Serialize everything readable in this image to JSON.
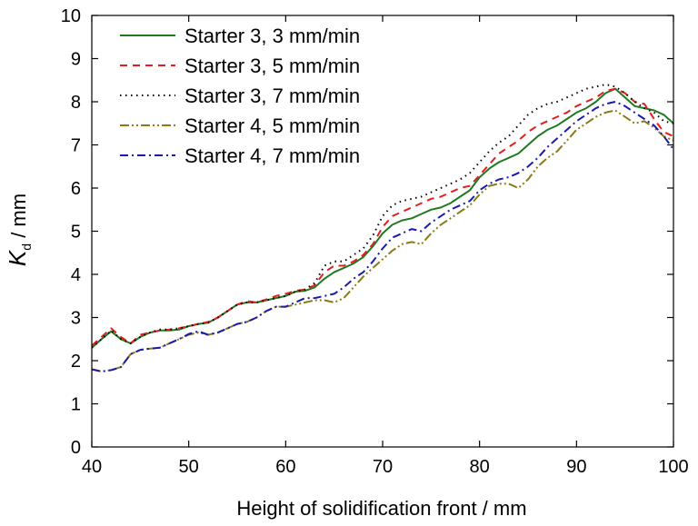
{
  "chart_data": {
    "type": "line",
    "xlabel": "Height of solidification front / mm",
    "ylabel_main": "K",
    "ylabel_sub": "d",
    "ylabel_unit": " / mm",
    "xlim": [
      40,
      100
    ],
    "ylim": [
      0,
      10
    ],
    "x_ticks": [
      40,
      50,
      60,
      70,
      80,
      90,
      100
    ],
    "y_ticks": [
      0,
      1,
      2,
      3,
      4,
      5,
      6,
      7,
      8,
      9,
      10
    ],
    "grid": false,
    "legend_position": "top-left",
    "series": [
      {
        "name": "Starter 3, 3 mm/min",
        "color": "#1f7a1f",
        "dash": "solid",
        "x": [
          40,
          41,
          42,
          43,
          44,
          45,
          46,
          47,
          48,
          49,
          50,
          51,
          52,
          53,
          54,
          55,
          56,
          57,
          58,
          59,
          60,
          61,
          62,
          63,
          64,
          65,
          66,
          67,
          68,
          69,
          70,
          71,
          72,
          73,
          74,
          75,
          76,
          77,
          78,
          79,
          80,
          81,
          82,
          83,
          84,
          85,
          86,
          87,
          88,
          89,
          90,
          91,
          92,
          93,
          94,
          95,
          96,
          97,
          98,
          99,
          100
        ],
        "y": [
          2.3,
          2.5,
          2.68,
          2.5,
          2.4,
          2.55,
          2.65,
          2.7,
          2.7,
          2.72,
          2.8,
          2.85,
          2.88,
          3.0,
          3.15,
          3.3,
          3.35,
          3.35,
          3.4,
          3.45,
          3.5,
          3.6,
          3.62,
          3.7,
          3.9,
          4.05,
          4.15,
          4.25,
          4.4,
          4.65,
          4.95,
          5.15,
          5.25,
          5.3,
          5.4,
          5.5,
          5.55,
          5.65,
          5.8,
          5.95,
          6.25,
          6.45,
          6.6,
          6.7,
          6.8,
          7.0,
          7.2,
          7.35,
          7.45,
          7.6,
          7.75,
          7.85,
          8.0,
          8.2,
          8.3,
          8.1,
          7.9,
          7.85,
          7.8,
          7.7,
          7.5
        ]
      },
      {
        "name": "Starter 3, 5 mm/min",
        "color": "#e02020",
        "dash": "8,6",
        "x": [
          40,
          41,
          42,
          43,
          44,
          45,
          46,
          47,
          48,
          49,
          50,
          51,
          52,
          53,
          54,
          55,
          56,
          57,
          58,
          59,
          60,
          61,
          62,
          63,
          64,
          65,
          66,
          67,
          68,
          69,
          70,
          71,
          72,
          73,
          74,
          75,
          76,
          77,
          78,
          79,
          80,
          81,
          82,
          83,
          84,
          85,
          86,
          87,
          88,
          89,
          90,
          91,
          92,
          93,
          94,
          95,
          96,
          97,
          98,
          99,
          100
        ],
        "y": [
          2.35,
          2.55,
          2.75,
          2.55,
          2.4,
          2.6,
          2.65,
          2.7,
          2.72,
          2.75,
          2.8,
          2.85,
          2.9,
          3.0,
          3.15,
          3.3,
          3.38,
          3.35,
          3.42,
          3.5,
          3.55,
          3.62,
          3.65,
          3.75,
          4.05,
          4.2,
          4.2,
          4.3,
          4.45,
          4.7,
          5.1,
          5.35,
          5.45,
          5.55,
          5.65,
          5.75,
          5.8,
          5.9,
          6.0,
          6.05,
          6.3,
          6.55,
          6.8,
          6.95,
          7.1,
          7.3,
          7.45,
          7.55,
          7.65,
          7.75,
          7.9,
          8.0,
          8.1,
          8.25,
          8.3,
          8.2,
          8.0,
          7.95,
          7.6,
          7.3,
          7.2
        ]
      },
      {
        "name": "Starter 3, 7 mm/min",
        "color": "#000000",
        "dash": "1.5,4.5",
        "x": [
          40,
          41,
          42,
          43,
          44,
          45,
          46,
          47,
          48,
          49,
          50,
          51,
          52,
          53,
          54,
          55,
          56,
          57,
          58,
          59,
          60,
          61,
          62,
          63,
          64,
          65,
          66,
          67,
          68,
          69,
          70,
          71,
          72,
          73,
          74,
          75,
          76,
          77,
          78,
          79,
          80,
          81,
          82,
          83,
          84,
          85,
          86,
          87,
          88,
          89,
          90,
          91,
          92,
          93,
          94,
          95,
          96,
          97,
          98,
          99,
          100
        ],
        "y": [
          2.3,
          2.5,
          2.7,
          2.5,
          2.4,
          2.55,
          2.65,
          2.72,
          2.72,
          2.75,
          2.8,
          2.85,
          2.88,
          3.0,
          3.15,
          3.3,
          3.35,
          3.35,
          3.4,
          3.45,
          3.5,
          3.6,
          3.65,
          3.8,
          4.2,
          4.3,
          4.3,
          4.45,
          4.6,
          4.9,
          5.35,
          5.6,
          5.7,
          5.75,
          5.8,
          5.9,
          6.0,
          6.1,
          6.2,
          6.35,
          6.6,
          6.85,
          7.05,
          7.2,
          7.45,
          7.7,
          7.85,
          7.95,
          8.0,
          8.1,
          8.2,
          8.3,
          8.35,
          8.4,
          8.35,
          8.2,
          8.0,
          7.85,
          7.75,
          7.55,
          7.5
        ]
      },
      {
        "name": "Starter 4, 5 mm/min",
        "color": "#8b7a1a",
        "dash": "10,3,2,3,2,3",
        "x": [
          40,
          41,
          42,
          43,
          44,
          45,
          46,
          47,
          48,
          49,
          50,
          51,
          52,
          53,
          54,
          55,
          56,
          57,
          58,
          59,
          60,
          61,
          62,
          63,
          64,
          65,
          66,
          67,
          68,
          69,
          70,
          71,
          72,
          73,
          74,
          75,
          76,
          77,
          78,
          79,
          80,
          81,
          82,
          83,
          84,
          85,
          86,
          87,
          88,
          89,
          90,
          91,
          92,
          93,
          94,
          95,
          96,
          97,
          98,
          99,
          100
        ],
        "y": [
          1.8,
          1.75,
          1.78,
          1.85,
          2.15,
          2.25,
          2.28,
          2.3,
          2.4,
          2.5,
          2.6,
          2.65,
          2.6,
          2.65,
          2.75,
          2.85,
          2.9,
          3.0,
          3.15,
          3.25,
          3.25,
          3.3,
          3.35,
          3.4,
          3.4,
          3.35,
          3.45,
          3.7,
          3.95,
          4.15,
          4.35,
          4.55,
          4.7,
          4.75,
          4.7,
          4.95,
          5.15,
          5.3,
          5.45,
          5.6,
          5.85,
          6.05,
          6.1,
          6.1,
          6.0,
          6.2,
          6.5,
          6.7,
          6.85,
          7.1,
          7.35,
          7.5,
          7.65,
          7.75,
          7.8,
          7.65,
          7.5,
          7.55,
          7.4,
          7.2,
          7.1
        ]
      },
      {
        "name": "Starter 4, 7 mm/min",
        "color": "#1a1aa8",
        "dash": "9,4,2,4",
        "x": [
          40,
          41,
          42,
          43,
          44,
          45,
          46,
          47,
          48,
          49,
          50,
          51,
          52,
          53,
          54,
          55,
          56,
          57,
          58,
          59,
          60,
          61,
          62,
          63,
          64,
          65,
          66,
          67,
          68,
          69,
          70,
          71,
          72,
          73,
          74,
          75,
          76,
          77,
          78,
          79,
          80,
          81,
          82,
          83,
          84,
          85,
          86,
          87,
          88,
          89,
          90,
          91,
          92,
          93,
          94,
          95,
          96,
          97,
          98,
          99,
          100
        ],
        "y": [
          1.8,
          1.75,
          1.78,
          1.85,
          2.15,
          2.25,
          2.28,
          2.3,
          2.4,
          2.5,
          2.62,
          2.68,
          2.6,
          2.65,
          2.75,
          2.85,
          2.9,
          3.0,
          3.15,
          3.25,
          3.25,
          3.35,
          3.45,
          3.45,
          3.5,
          3.55,
          3.7,
          3.9,
          4.05,
          4.3,
          4.6,
          4.85,
          4.95,
          5.05,
          5.0,
          5.2,
          5.35,
          5.5,
          5.6,
          5.7,
          5.95,
          6.1,
          6.2,
          6.25,
          6.35,
          6.5,
          6.7,
          6.95,
          7.15,
          7.35,
          7.55,
          7.7,
          7.85,
          7.95,
          8.0,
          7.9,
          7.75,
          7.6,
          7.45,
          7.2,
          6.9
        ]
      }
    ]
  }
}
